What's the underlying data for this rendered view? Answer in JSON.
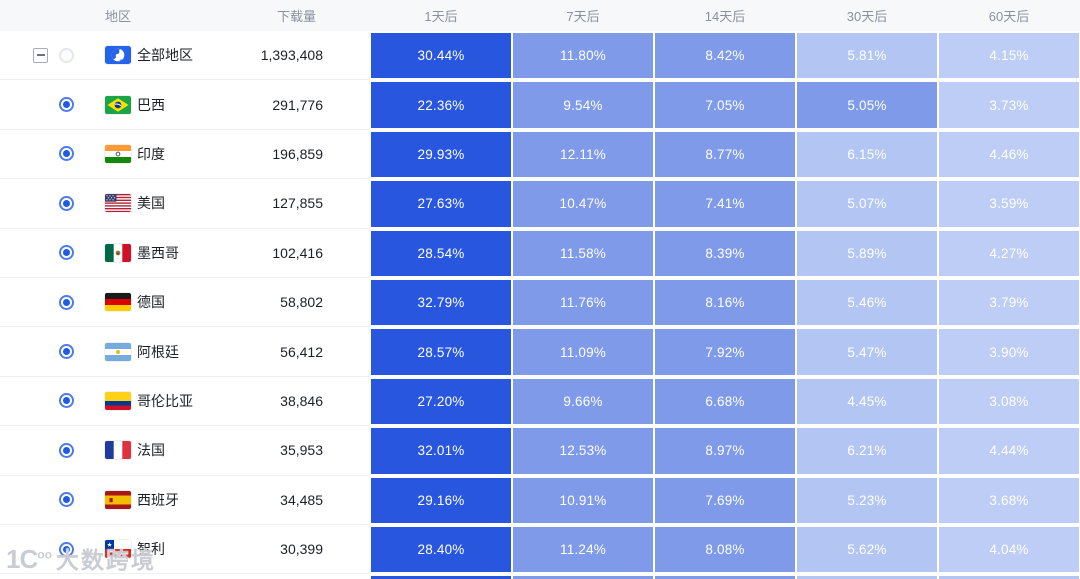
{
  "columns": [
    "地区",
    "下载量",
    "1天后",
    "7天后",
    "14天后",
    "30天后",
    "60天后"
  ],
  "palette": {
    "d": "#2956DE",
    "m": "#7F9AE9",
    "l": "#B3C5F2",
    "xl": "#BDCDF5"
  },
  "rows": [
    {
      "region": "全部地区",
      "flag": "globe",
      "downloads": "1,393,408",
      "radio": "empty",
      "expander": true,
      "values": [
        "30.44%",
        "11.80%",
        "8.42%",
        "5.81%",
        "4.15%"
      ],
      "levels": [
        "d",
        "m",
        "m",
        "l",
        "xl"
      ]
    },
    {
      "region": "巴西",
      "flag": "br",
      "downloads": "291,776",
      "radio": "selected",
      "expander": false,
      "values": [
        "22.36%",
        "9.54%",
        "7.05%",
        "5.05%",
        "3.73%"
      ],
      "levels": [
        "d",
        "m",
        "m",
        "m",
        "xl"
      ]
    },
    {
      "region": "印度",
      "flag": "in",
      "downloads": "196,859",
      "radio": "selected",
      "expander": false,
      "values": [
        "29.93%",
        "12.11%",
        "8.77%",
        "6.15%",
        "4.46%"
      ],
      "levels": [
        "d",
        "m",
        "m",
        "l",
        "xl"
      ]
    },
    {
      "region": "美国",
      "flag": "us",
      "downloads": "127,855",
      "radio": "selected",
      "expander": false,
      "values": [
        "27.63%",
        "10.47%",
        "7.41%",
        "5.07%",
        "3.59%"
      ],
      "levels": [
        "d",
        "m",
        "m",
        "l",
        "xl"
      ]
    },
    {
      "region": "墨西哥",
      "flag": "mx",
      "downloads": "102,416",
      "radio": "selected",
      "expander": false,
      "values": [
        "28.54%",
        "11.58%",
        "8.39%",
        "5.89%",
        "4.27%"
      ],
      "levels": [
        "d",
        "m",
        "m",
        "l",
        "xl"
      ]
    },
    {
      "region": "德国",
      "flag": "de",
      "downloads": "58,802",
      "radio": "selected",
      "expander": false,
      "values": [
        "32.79%",
        "11.76%",
        "8.16%",
        "5.46%",
        "3.79%"
      ],
      "levels": [
        "d",
        "m",
        "m",
        "l",
        "xl"
      ]
    },
    {
      "region": "阿根廷",
      "flag": "ar",
      "downloads": "56,412",
      "radio": "selected",
      "expander": false,
      "values": [
        "28.57%",
        "11.09%",
        "7.92%",
        "5.47%",
        "3.90%"
      ],
      "levels": [
        "d",
        "m",
        "m",
        "l",
        "xl"
      ]
    },
    {
      "region": "哥伦比亚",
      "flag": "co",
      "downloads": "38,846",
      "radio": "selected",
      "expander": false,
      "values": [
        "27.20%",
        "9.66%",
        "6.68%",
        "4.45%",
        "3.08%"
      ],
      "levels": [
        "d",
        "m",
        "m",
        "l",
        "xl"
      ]
    },
    {
      "region": "法国",
      "flag": "fr",
      "downloads": "35,953",
      "radio": "selected",
      "expander": false,
      "values": [
        "32.01%",
        "12.53%",
        "8.97%",
        "6.21%",
        "4.44%"
      ],
      "levels": [
        "d",
        "m",
        "m",
        "l",
        "xl"
      ]
    },
    {
      "region": "西班牙",
      "flag": "es",
      "downloads": "34,485",
      "radio": "selected",
      "expander": false,
      "values": [
        "29.16%",
        "10.91%",
        "7.69%",
        "5.23%",
        "3.68%"
      ],
      "levels": [
        "d",
        "m",
        "m",
        "l",
        "xl"
      ]
    },
    {
      "region": "智利",
      "flag": "cl",
      "downloads": "30,399",
      "radio": "selected",
      "expander": false,
      "values": [
        "28.40%",
        "11.24%",
        "8.08%",
        "5.62%",
        "4.04%"
      ],
      "levels": [
        "d",
        "m",
        "m",
        "l",
        "xl"
      ]
    }
  ],
  "partial_row_levels": [
    "d",
    "m",
    "m",
    "l",
    "l"
  ],
  "watermark": {
    "logo": "1C",
    "logo_sup": "oo",
    "text": "大数跨境"
  }
}
